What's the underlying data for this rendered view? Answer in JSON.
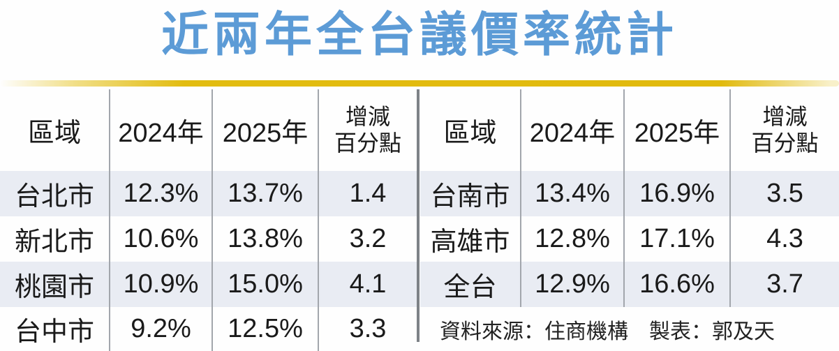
{
  "page": {
    "title": "近兩年全台議價率統計"
  },
  "chart_data": {
    "type": "table",
    "title": "近兩年全台議價率統計",
    "column_headers": {
      "region": "區域",
      "y2024": "2024年",
      "y2025": "2025年",
      "change_line1": "增減",
      "change_line2": "百分點"
    },
    "left_table_rows": [
      {
        "region": "台北市",
        "y2024": "12.3%",
        "y2025": "13.7%",
        "change": "1.4"
      },
      {
        "region": "新北市",
        "y2024": "10.6%",
        "y2025": "13.8%",
        "change": "3.2"
      },
      {
        "region": "桃園市",
        "y2024": "10.9%",
        "y2025": "15.0%",
        "change": "4.1"
      },
      {
        "region": "台中市",
        "y2024": "9.2%",
        "y2025": "12.5%",
        "change": "3.3"
      }
    ],
    "right_table_rows": [
      {
        "region": "台南市",
        "y2024": "13.4%",
        "y2025": "16.9%",
        "change": "3.5"
      },
      {
        "region": "高雄市",
        "y2024": "12.8%",
        "y2025": "17.1%",
        "change": "4.3"
      },
      {
        "region": "全台",
        "y2024": "12.9%",
        "y2025": "16.6%",
        "change": "3.7"
      }
    ],
    "footer": {
      "source": "資料來源：住商機構",
      "credit": "製表：郭及天"
    },
    "layout_hints": {
      "tables": "two side-by-side tables separated by a vertical gray divider",
      "striped_rows": "rows 1 and 3 of each table shaded light blue-gray",
      "grid": "vertical column separators only, no horizontal rules"
    }
  },
  "colors": {
    "title_blue": "#5C9BD6",
    "accent_gold": "#E2BC10",
    "row_stripe": "#E9ECF3",
    "text": "#1A1A1A",
    "column_separator": "#A2A6AC",
    "center_divider": "#7E8287"
  }
}
